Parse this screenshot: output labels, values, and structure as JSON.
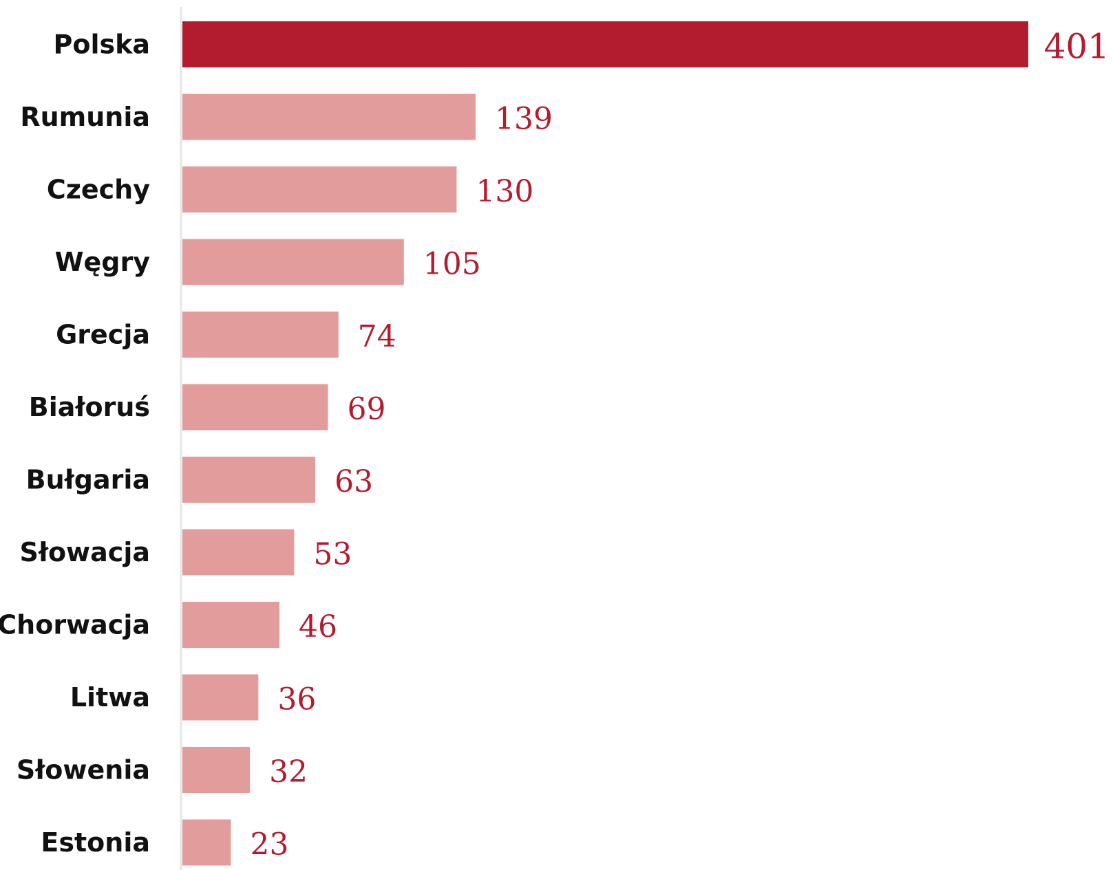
{
  "chart_data": {
    "type": "bar",
    "orientation": "horizontal",
    "title": "",
    "xlabel": "",
    "ylabel": "",
    "categories": [
      "Polska",
      "Rumunia",
      "Czechy",
      "Węgry",
      "Grecja",
      "Białoruś",
      "Bułgaria",
      "Słowacja",
      "Chorwacja",
      "Litwa",
      "Słowenia",
      "Estonia"
    ],
    "values": [
      401,
      139,
      130,
      105,
      74,
      69,
      63,
      53,
      46,
      36,
      32,
      23
    ],
    "highlight_index": 0,
    "xlim": [
      0,
      401
    ],
    "grid": false,
    "legend": "none",
    "colors": {
      "highlight_bar": "#b31b2e",
      "bar": "#e39c9c",
      "value_label": "#b31b2e",
      "category_label": "#111111",
      "axis": "#e6e6e6"
    }
  }
}
